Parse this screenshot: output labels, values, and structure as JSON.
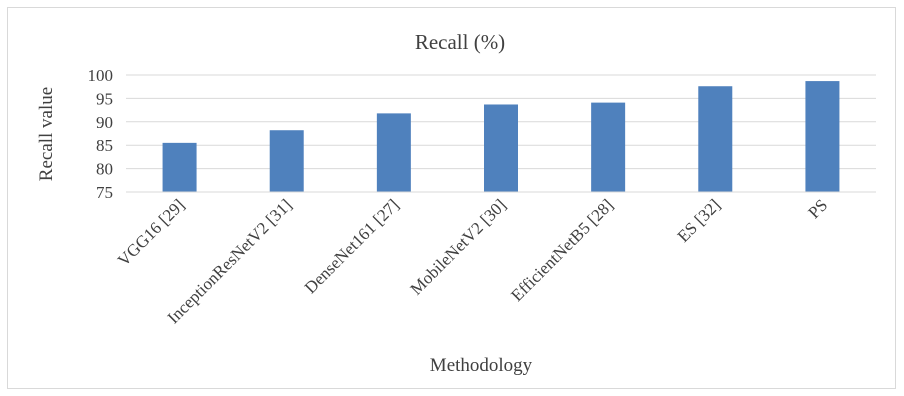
{
  "chart_data": {
    "type": "bar",
    "title": "Recall (%)",
    "xlabel": "Methodology",
    "ylabel": "Recall value",
    "categories": [
      "VGG16 [29]",
      "InceptionResNetV2 [31]",
      "DenseNet161 [27]",
      "MobileNetV2 [30]",
      "EfficientNetB5 [28]",
      "ES [32]",
      "PS"
    ],
    "series": [
      {
        "values": [
          85.5,
          88.2,
          91.8,
          93.7,
          94.1,
          97.6,
          98.7
        ]
      }
    ],
    "ylim": [
      75,
      100
    ],
    "yticks": [
      75,
      80,
      85,
      90,
      95,
      100
    ],
    "grid": true,
    "legend": "none",
    "bar_color": "#4f81bd",
    "grid_color": "#d9d9d9"
  }
}
